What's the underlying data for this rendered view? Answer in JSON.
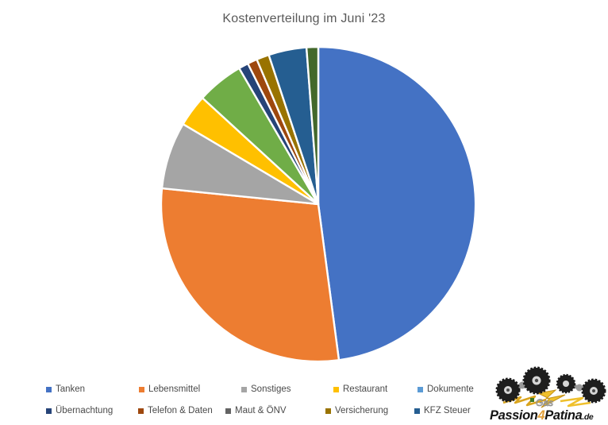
{
  "chart_data": {
    "type": "pie",
    "title": "Kostenverteilung im Juni '23",
    "legend_position": "bottom",
    "slices": [
      {
        "label": "Tanken",
        "percent": 47.9,
        "color": "#4472C4"
      },
      {
        "label": "Lebensmittel",
        "percent": 28.7,
        "color": "#ED7D31"
      },
      {
        "label": "Sonstiges",
        "percent": 6.9,
        "color": "#A5A5A5"
      },
      {
        "label": "Restaurant",
        "percent": 3.3,
        "color": "#FFC000"
      },
      {
        "label": "",
        "percent": 4.8,
        "color": "#70AD47"
      },
      {
        "label": "Übernachtung",
        "percent": 1.0,
        "color": "#264478"
      },
      {
        "label": "Telefon & Daten",
        "percent": 1.0,
        "color": "#9E480E"
      },
      {
        "label": "Versicherung",
        "percent": 1.3,
        "color": "#997300"
      },
      {
        "label": "KFZ Steuer",
        "percent": 3.9,
        "color": "#255E91"
      },
      {
        "label": "",
        "percent": 1.2,
        "color": "#43682B"
      }
    ],
    "legend": [
      {
        "label": "Tanken",
        "color": "#4472C4"
      },
      {
        "label": "Lebensmittel",
        "color": "#ED7D31"
      },
      {
        "label": "Sonstiges",
        "color": "#A5A5A5"
      },
      {
        "label": "Restaurant",
        "color": "#FFC000"
      },
      {
        "label": "Dokumente",
        "color": "#5B9BD5"
      },
      {
        "label": "Übernachtung",
        "color": "#264478"
      },
      {
        "label": "Telefon & Daten",
        "color": "#9E480E"
      },
      {
        "label": "Maut & ÖNV",
        "color": "#636363"
      },
      {
        "label": "Versicherung",
        "color": "#997300"
      },
      {
        "label": "KFZ Steuer",
        "color": "#255E91"
      }
    ]
  },
  "colors": {
    "title_text": "#595959",
    "legend_text": "#4a4a4a",
    "slice_border": "#ffffff",
    "logo_gold": "#E2A03B",
    "logo_black": "#141414",
    "logo_lightning": "#EFC02C"
  },
  "logo": {
    "text_passion": "Passion",
    "text_4": "4",
    "text_patina": "Patina",
    "text_de": ".de",
    "text_gas": "Gas"
  }
}
